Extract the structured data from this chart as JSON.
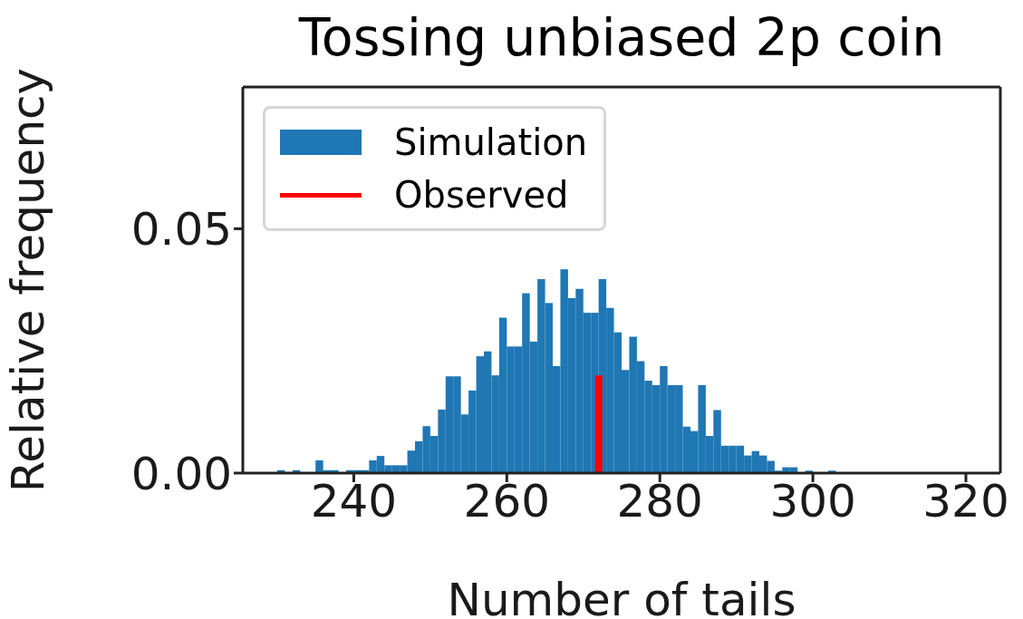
{
  "chart_data": {
    "type": "histogram",
    "title": "Tossing unbiased 2p coin",
    "xlabel": "Number of tails",
    "ylabel": "Relative frequency",
    "bins": [
      230,
      231,
      232,
      233,
      234,
      235,
      236,
      237,
      238,
      239,
      240,
      241,
      242,
      243,
      244,
      245,
      246,
      247,
      248,
      249,
      250,
      251,
      252,
      253,
      254,
      255,
      256,
      257,
      258,
      259,
      260,
      261,
      262,
      263,
      264,
      265,
      266,
      267,
      268,
      269,
      270,
      271,
      272,
      273,
      274,
      275,
      276,
      277,
      278,
      279,
      280,
      281,
      282,
      283,
      284,
      285,
      286,
      287,
      288,
      289,
      290,
      291,
      292,
      293,
      294,
      295,
      296,
      297,
      298,
      299,
      300,
      301,
      302,
      303,
      304,
      305,
      306,
      307,
      308,
      309,
      310,
      311,
      312,
      313,
      314,
      315,
      316,
      317,
      318,
      319,
      320
    ],
    "series": [
      {
        "name": "Simulation",
        "color": "#1f77b4",
        "values": [
          0.0006,
          0,
          0.0006,
          0,
          0,
          0.0026,
          0.0006,
          0.0006,
          0,
          0.0006,
          0.0006,
          0.0006,
          0.0026,
          0.0035,
          0.0016,
          0.0016,
          0.0016,
          0.0046,
          0.0065,
          0.0096,
          0.0076,
          0.013,
          0.0198,
          0.0198,
          0.012,
          0.0169,
          0.0239,
          0.0249,
          0.02,
          0.0318,
          0.0259,
          0.0259,
          0.0368,
          0.0269,
          0.0397,
          0.0348,
          0.0219,
          0.0417,
          0.0358,
          0.0377,
          0.0328,
          0.0328,
          0.0397,
          0.0338,
          0.0288,
          0.0211,
          0.0279,
          0.0229,
          0.0189,
          0.018,
          0.0219,
          0.018,
          0.018,
          0.0095,
          0.0086,
          0.018,
          0.0076,
          0.0129,
          0.0056,
          0.0056,
          0.0056,
          0.0036,
          0.0045,
          0.0036,
          0.0025,
          0.0005,
          0.0012,
          0.0012,
          0,
          0.0005,
          0,
          0,
          0.0005,
          0,
          0,
          0,
          0,
          0,
          0,
          0,
          0,
          0,
          0,
          0,
          0,
          0,
          0,
          0,
          0,
          0
        ]
      },
      {
        "name": "Observed",
        "type": "line",
        "color": "#ff0000",
        "x": [
          272,
          272
        ],
        "values": [
          0,
          0.02
        ]
      }
    ],
    "xlim": [
      225.5,
      324.5
    ],
    "xticks": [
      240,
      260,
      280,
      300,
      320
    ],
    "ylim": [
      0,
      0.079
    ],
    "yticks": [
      {
        "value": 0,
        "label": "0.00"
      },
      {
        "value": 0.05,
        "label": "0.05"
      }
    ],
    "legend": "top left"
  }
}
